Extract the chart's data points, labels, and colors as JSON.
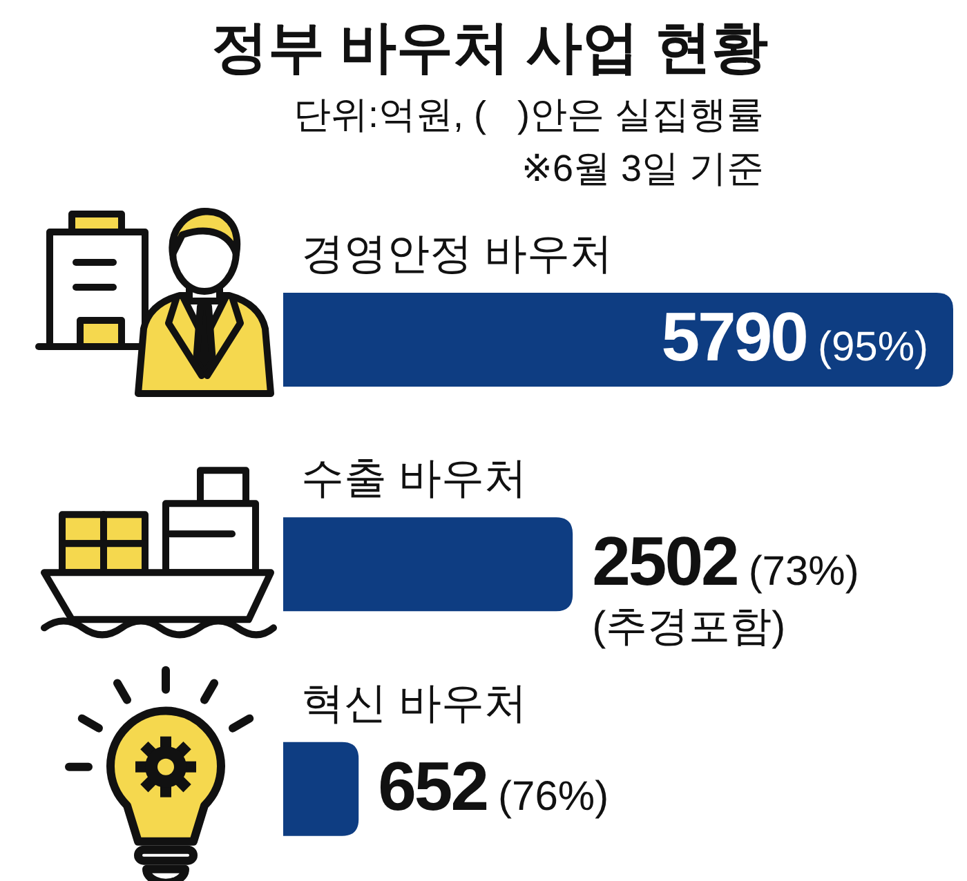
{
  "chart_data": {
    "type": "bar",
    "orientation": "horizontal",
    "title": "정부 바우처 사업 현황",
    "subtitle": "단위:억원, (   )안은 실집행률",
    "annotations": [
      "※6월 3일 기준"
    ],
    "categories": [
      "경영안정 바우처",
      "수출 바우처",
      "혁신 바우처"
    ],
    "values": [
      5790,
      2502,
      652
    ],
    "color": "#0e3d82",
    "value_labels": [
      "5790 (95%)",
      "2502 (73%)\n(추경포함)",
      "652 (76%)"
    ]
  }
}
